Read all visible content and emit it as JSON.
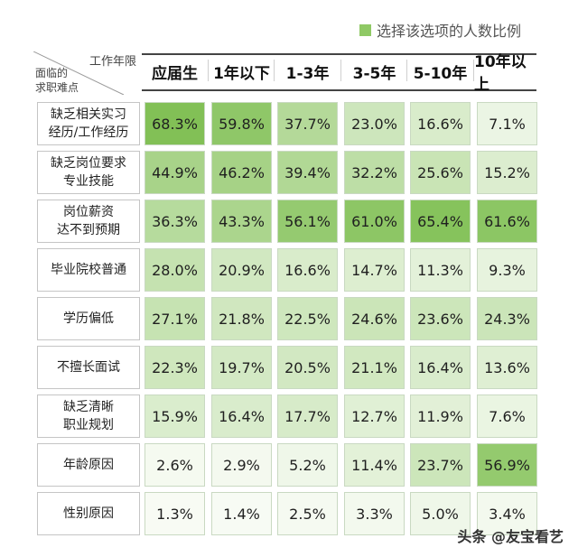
{
  "legend": {
    "label": "选择该选项的人数比例",
    "swatch_color": "#8fc965"
  },
  "corner": {
    "column_axis": "工作年限",
    "row_axis_line1": "面临的",
    "row_axis_line2": "求职难点"
  },
  "watermark": "头条 @友宝看艺",
  "chart_data": {
    "type": "heatmap",
    "columns": [
      "应届生",
      "1年以下",
      "1-3年",
      "3-5年",
      "5-10年",
      "10年以上"
    ],
    "rows": [
      {
        "label": "缺乏相关实习\n经历/工作经历",
        "values": [
          "68.3%",
          "59.8%",
          "37.7%",
          "23.0%",
          "16.6%",
          "7.1%"
        ]
      },
      {
        "label": "缺乏岗位要求\n专业技能",
        "values": [
          "44.9%",
          "46.2%",
          "39.4%",
          "32.2%",
          "25.6%",
          "15.2%"
        ]
      },
      {
        "label": "岗位薪资\n达不到预期",
        "values": [
          "36.3%",
          "43.3%",
          "56.1%",
          "61.0%",
          "65.4%",
          "61.6%"
        ]
      },
      {
        "label": "毕业院校普通",
        "values": [
          "28.0%",
          "20.9%",
          "16.6%",
          "14.7%",
          "11.3%",
          "9.3%"
        ]
      },
      {
        "label": "学历偏低",
        "values": [
          "27.1%",
          "21.8%",
          "22.5%",
          "24.6%",
          "23.6%",
          "24.3%"
        ]
      },
      {
        "label": "不擅长面试",
        "values": [
          "22.3%",
          "19.7%",
          "20.5%",
          "21.1%",
          "16.4%",
          "13.6%"
        ]
      },
      {
        "label": "缺乏清晰\n职业规划",
        "values": [
          "15.9%",
          "16.4%",
          "17.7%",
          "12.7%",
          "11.9%",
          "7.6%"
        ]
      },
      {
        "label": "年龄原因",
        "values": [
          "2.6%",
          "2.9%",
          "5.2%",
          "11.4%",
          "23.7%",
          "56.9%"
        ]
      },
      {
        "label": "性别原因",
        "values": [
          "1.3%",
          "1.4%",
          "2.5%",
          "3.3%",
          "5.0%",
          "3.4%"
        ]
      }
    ],
    "color_scale": {
      "low": "#fbfdf9",
      "high": "#7fbf52"
    }
  }
}
